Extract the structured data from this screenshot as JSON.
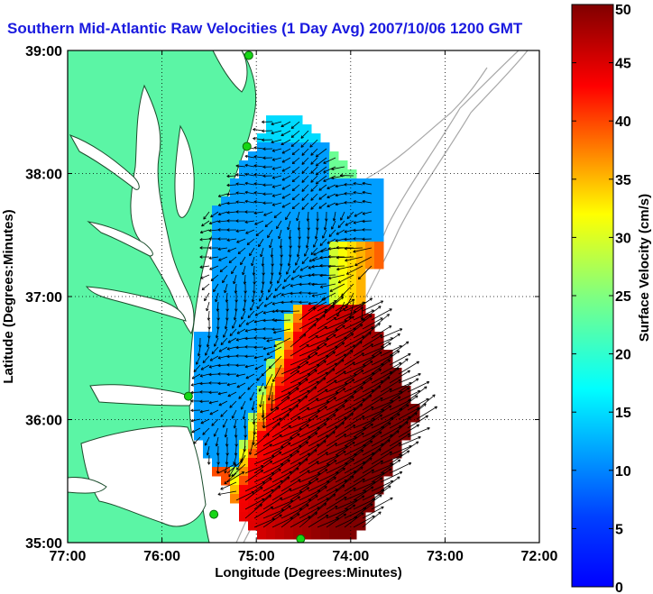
{
  "title": "Southern Mid-Atlantic Raw Velocities (1 Day Avg) 2007/10/06 1200 GMT",
  "colors": {
    "land": "#5bf5a5",
    "water": "#ffffff",
    "bathymetry": "#a8a8a8",
    "coastline": "#1b4d2c",
    "station": "#16d616",
    "vector": "#000000",
    "title": "#1a1adf"
  },
  "chart_data": {
    "type": "heatmap",
    "title": "Southern Mid-Atlantic Raw Velocities (1 Day Avg) 2007/10/06 1200 GMT",
    "xlabel": "Longitude (Degrees:Minutes)",
    "ylabel": "Latitude (Degrees:Minutes)",
    "x_ticks": [
      "77:00",
      "76:00",
      "75:00",
      "74:00",
      "73:00",
      "72:00"
    ],
    "y_ticks": [
      "39:00",
      "38:00",
      "37:00",
      "36:00",
      "35:00"
    ],
    "xlim": [
      -77,
      -72
    ],
    "ylim": [
      35,
      39
    ],
    "grid": true,
    "colorbar": {
      "label": "Surface Velocity (cm/s)",
      "range": [
        0,
        50
      ],
      "ticks": [
        0,
        5,
        10,
        15,
        20,
        25,
        30,
        35,
        40,
        45,
        50
      ],
      "colormap": "jet"
    },
    "stations": [
      {
        "lon": -75.08,
        "lat": 38.96
      },
      {
        "lon": -75.1,
        "lat": 38.22
      },
      {
        "lon": -75.72,
        "lat": 36.19
      },
      {
        "lon": -75.45,
        "lat": 35.23
      },
      {
        "lon": -74.53,
        "lat": 35.03
      }
    ]
  }
}
